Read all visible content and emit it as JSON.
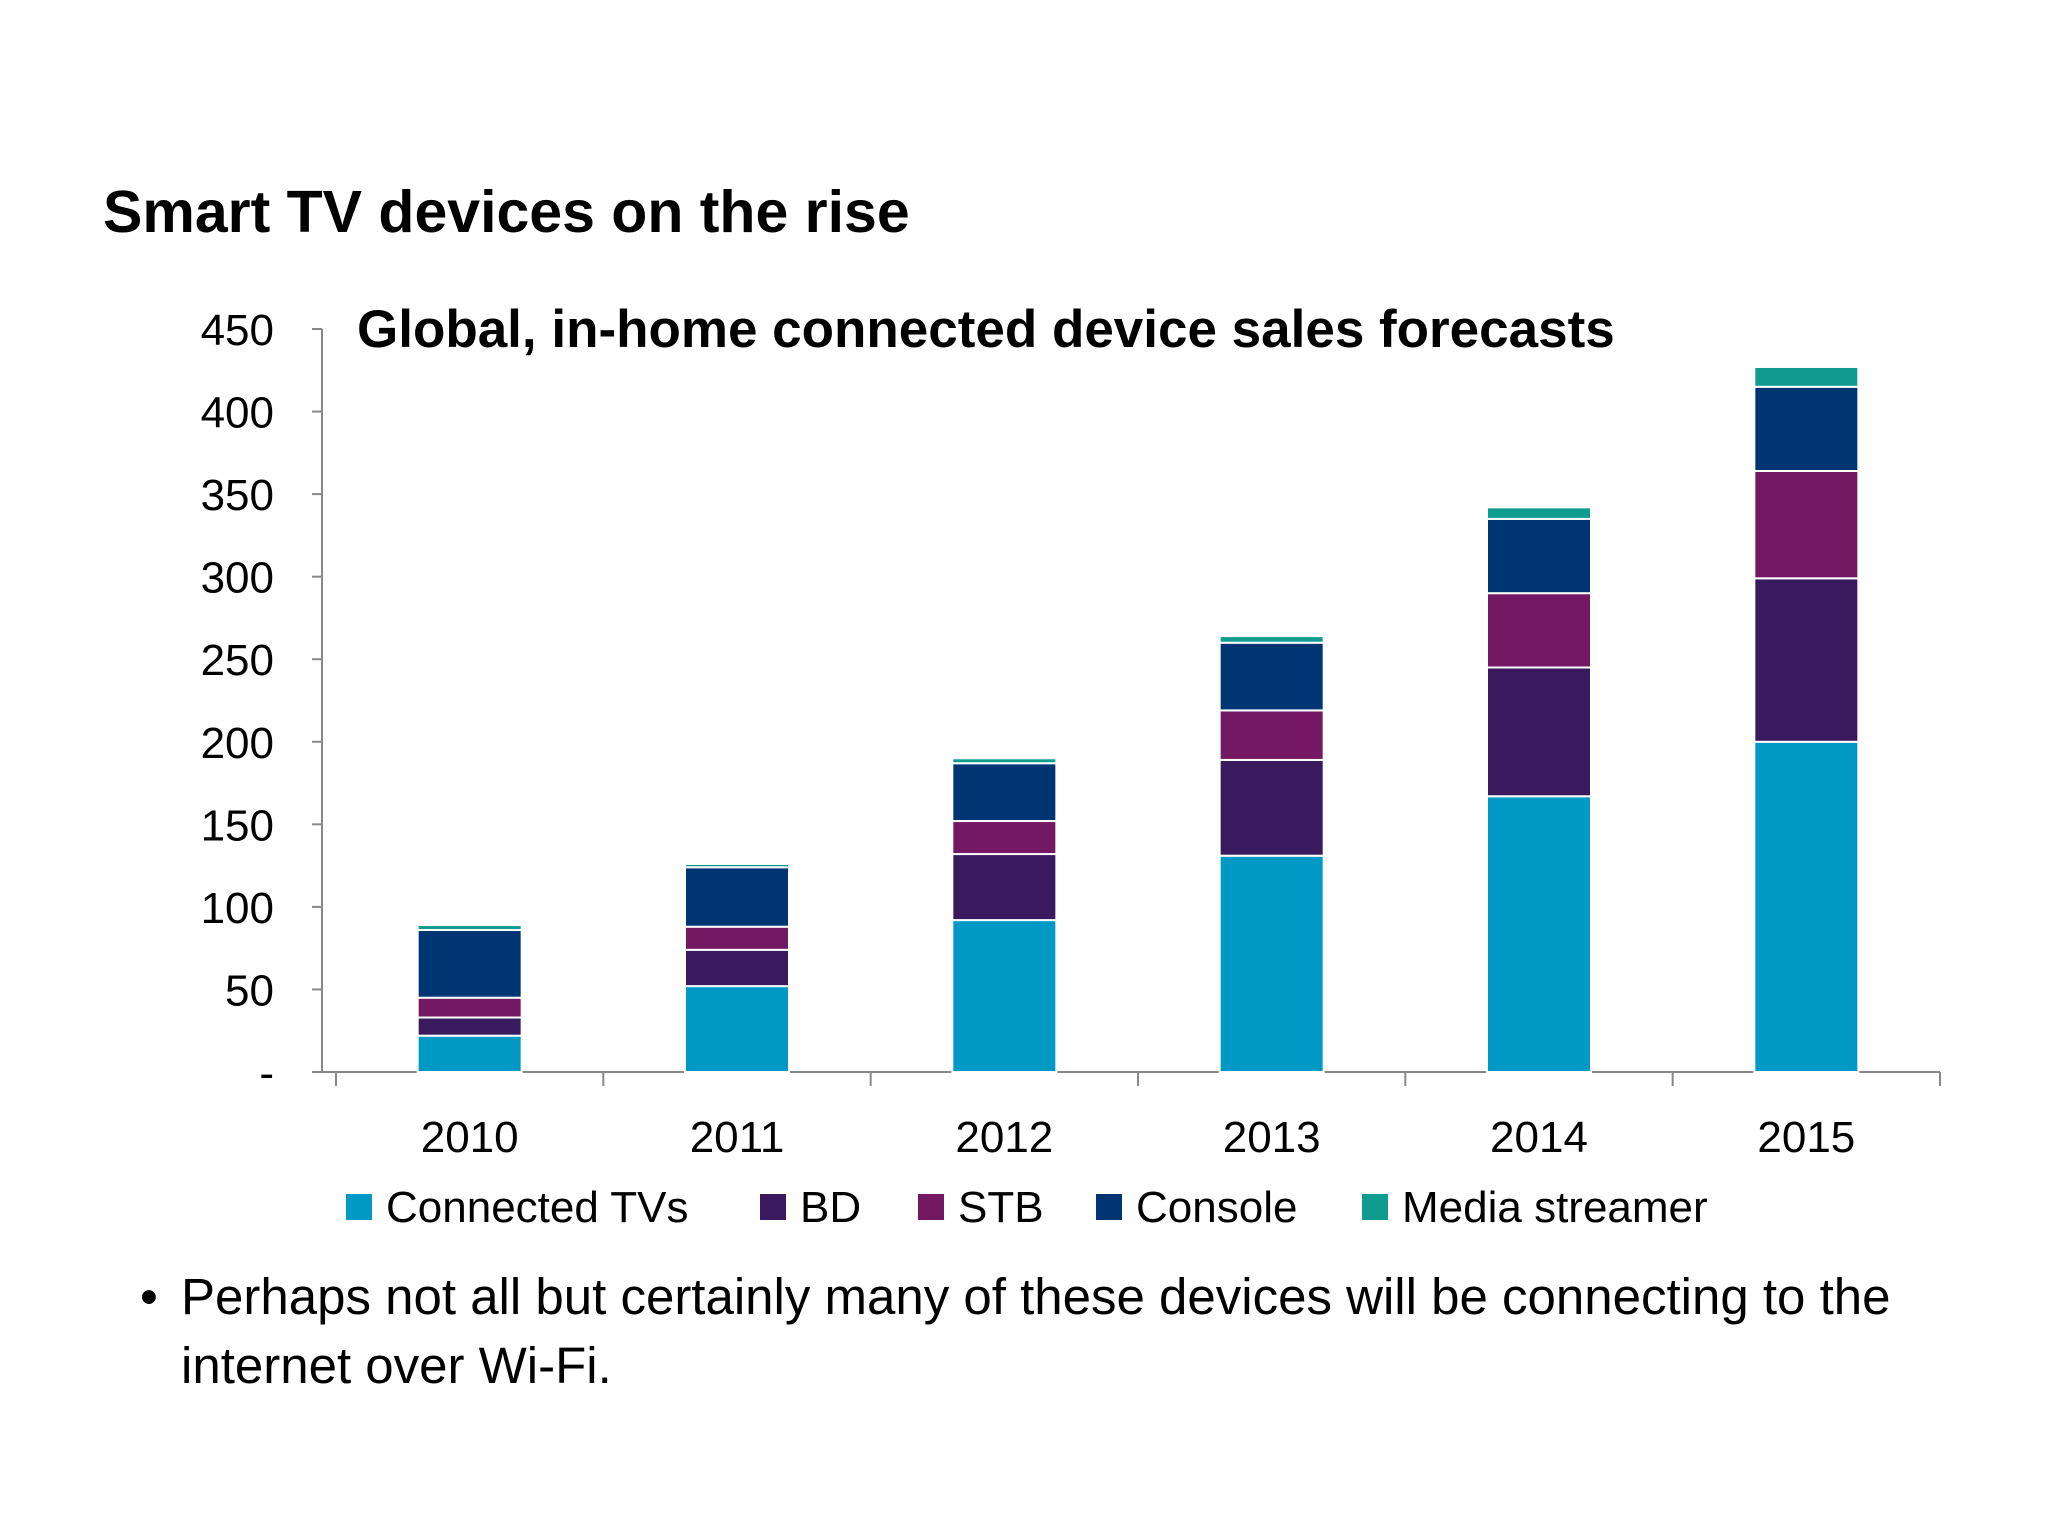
{
  "slide": {
    "title": "Smart TV devices on the rise",
    "bullet": "Perhaps not all but certainly many of these devices will be connecting to the internet over Wi-Fi."
  },
  "chart_data": {
    "type": "bar",
    "stacked": true,
    "title": "Global, in-home connected device sales forecasts",
    "xlabel": "",
    "ylabel": "",
    "categories": [
      "2010",
      "2011",
      "2012",
      "2013",
      "2014",
      "2015"
    ],
    "series": [
      {
        "name": "Connected TVs",
        "color": "#0099C6",
        "values": [
          22,
          52,
          92,
          131,
          167,
          200
        ]
      },
      {
        "name": "BD",
        "color": "#3A1A5E",
        "values": [
          11,
          22,
          40,
          58,
          78,
          99
        ]
      },
      {
        "name": "STB",
        "color": "#741863",
        "values": [
          12,
          14,
          20,
          30,
          45,
          65
        ]
      },
      {
        "name": "Console",
        "color": "#003573",
        "values": [
          41,
          36,
          35,
          41,
          45,
          51
        ]
      },
      {
        "name": "Media streamer",
        "color": "#0F9B8E",
        "values": [
          3,
          2,
          3,
          4,
          7,
          12
        ]
      }
    ],
    "ylim": [
      0,
      450
    ],
    "yticks": [
      0,
      50,
      100,
      150,
      200,
      250,
      300,
      350,
      400,
      450
    ],
    "ytick_labels": [
      "-",
      "50",
      "100",
      "150",
      "200",
      "250",
      "300",
      "350",
      "400",
      "450"
    ],
    "grid": false,
    "legend_position": "bottom"
  }
}
